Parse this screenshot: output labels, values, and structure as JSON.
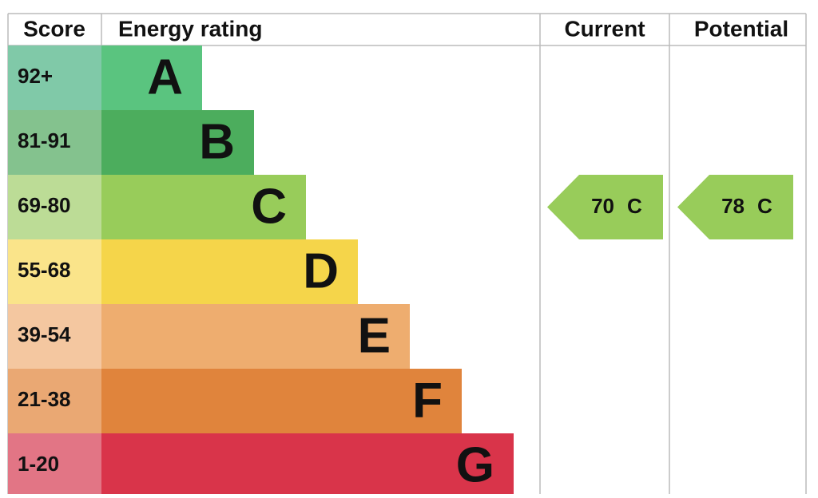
{
  "header": {
    "score": "Score",
    "rating": "Energy rating",
    "current": "Current",
    "potential": "Potential"
  },
  "bands": [
    {
      "score": "92+",
      "letter": "A",
      "color": "#5ac47f",
      "score_color": "#80c9a8"
    },
    {
      "score": "81-91",
      "letter": "B",
      "color": "#4cad5d",
      "score_color": "#84c28e"
    },
    {
      "score": "69-80",
      "letter": "C",
      "color": "#98cc5a",
      "score_color": "#bcdc96"
    },
    {
      "score": "55-68",
      "letter": "D",
      "color": "#f5d54a",
      "score_color": "#fae48a"
    },
    {
      "score": "39-54",
      "letter": "E",
      "color": "#eead6f",
      "score_color": "#f4c7a0"
    },
    {
      "score": "21-38",
      "letter": "F",
      "color": "#e0843c",
      "score_color": "#eaa873"
    },
    {
      "score": "1-20",
      "letter": "G",
      "color": "#d9344a",
      "score_color": "#e27585"
    }
  ],
  "current": {
    "score": 70,
    "band": "C"
  },
  "potential": {
    "score": 78,
    "band": "C"
  }
}
